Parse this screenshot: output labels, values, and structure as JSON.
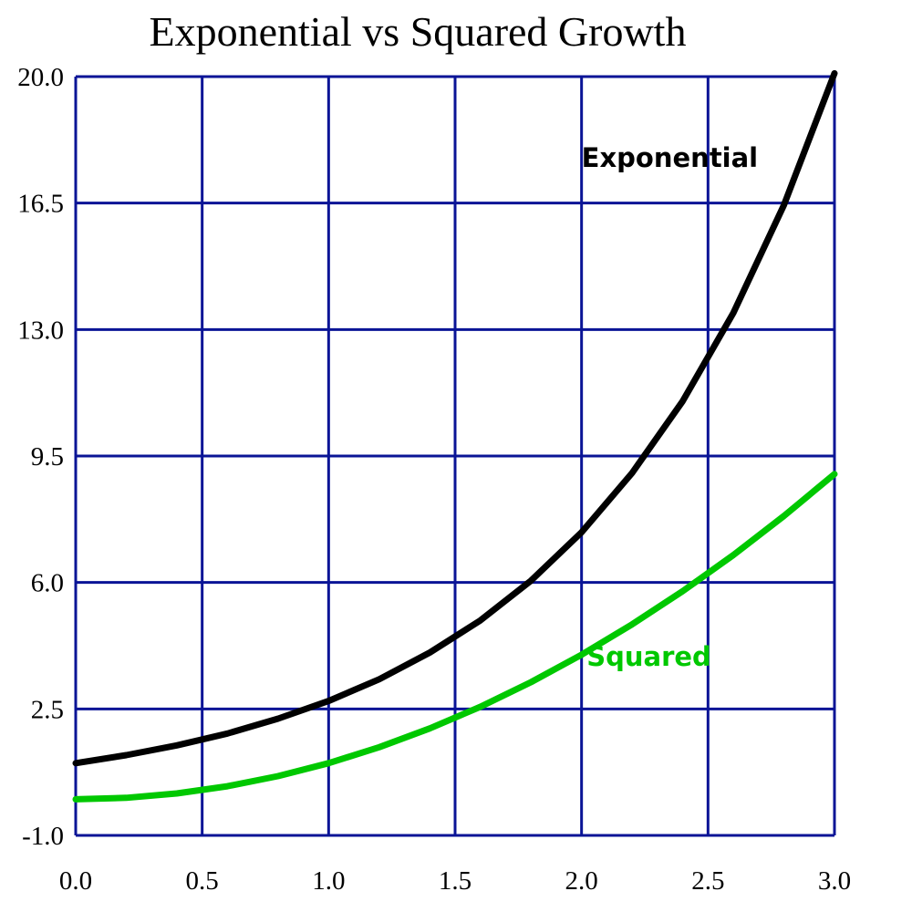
{
  "chart_data": {
    "type": "line",
    "title": "Exponential vs Squared Growth",
    "xlabel": "",
    "ylabel": "",
    "xlim": [
      0.0,
      3.0
    ],
    "ylim": [
      -1.0,
      20.0
    ],
    "x_ticks": [
      "0.0",
      "0.5",
      "1.0",
      "1.5",
      "2.0",
      "2.5",
      "3.0"
    ],
    "y_ticks": [
      "-1.0",
      "2.5",
      "6.0",
      "9.5",
      "13.0",
      "16.5",
      "20.0"
    ],
    "grid": true,
    "legend": "none",
    "grid_color": "#0a1496",
    "x": [
      0.0,
      0.2,
      0.4,
      0.6,
      0.8,
      1.0,
      1.2,
      1.4,
      1.6,
      1.8,
      2.0,
      2.2,
      2.4,
      2.6,
      2.8,
      3.0
    ],
    "series": [
      {
        "name": "Exponential",
        "color": "#000000",
        "label_at": [
          2.0,
          17.5
        ],
        "values": [
          1.0,
          1.22,
          1.49,
          1.82,
          2.23,
          2.72,
          3.32,
          4.06,
          4.95,
          6.05,
          7.39,
          9.03,
          11.02,
          13.46,
          16.44,
          20.09
        ]
      },
      {
        "name": "Squared",
        "color": "#00c800",
        "label_at": [
          2.02,
          3.7
        ],
        "values": [
          0.0,
          0.04,
          0.16,
          0.36,
          0.64,
          1.0,
          1.44,
          1.96,
          2.56,
          3.24,
          4.0,
          4.84,
          5.76,
          6.76,
          7.84,
          9.0
        ]
      }
    ]
  }
}
